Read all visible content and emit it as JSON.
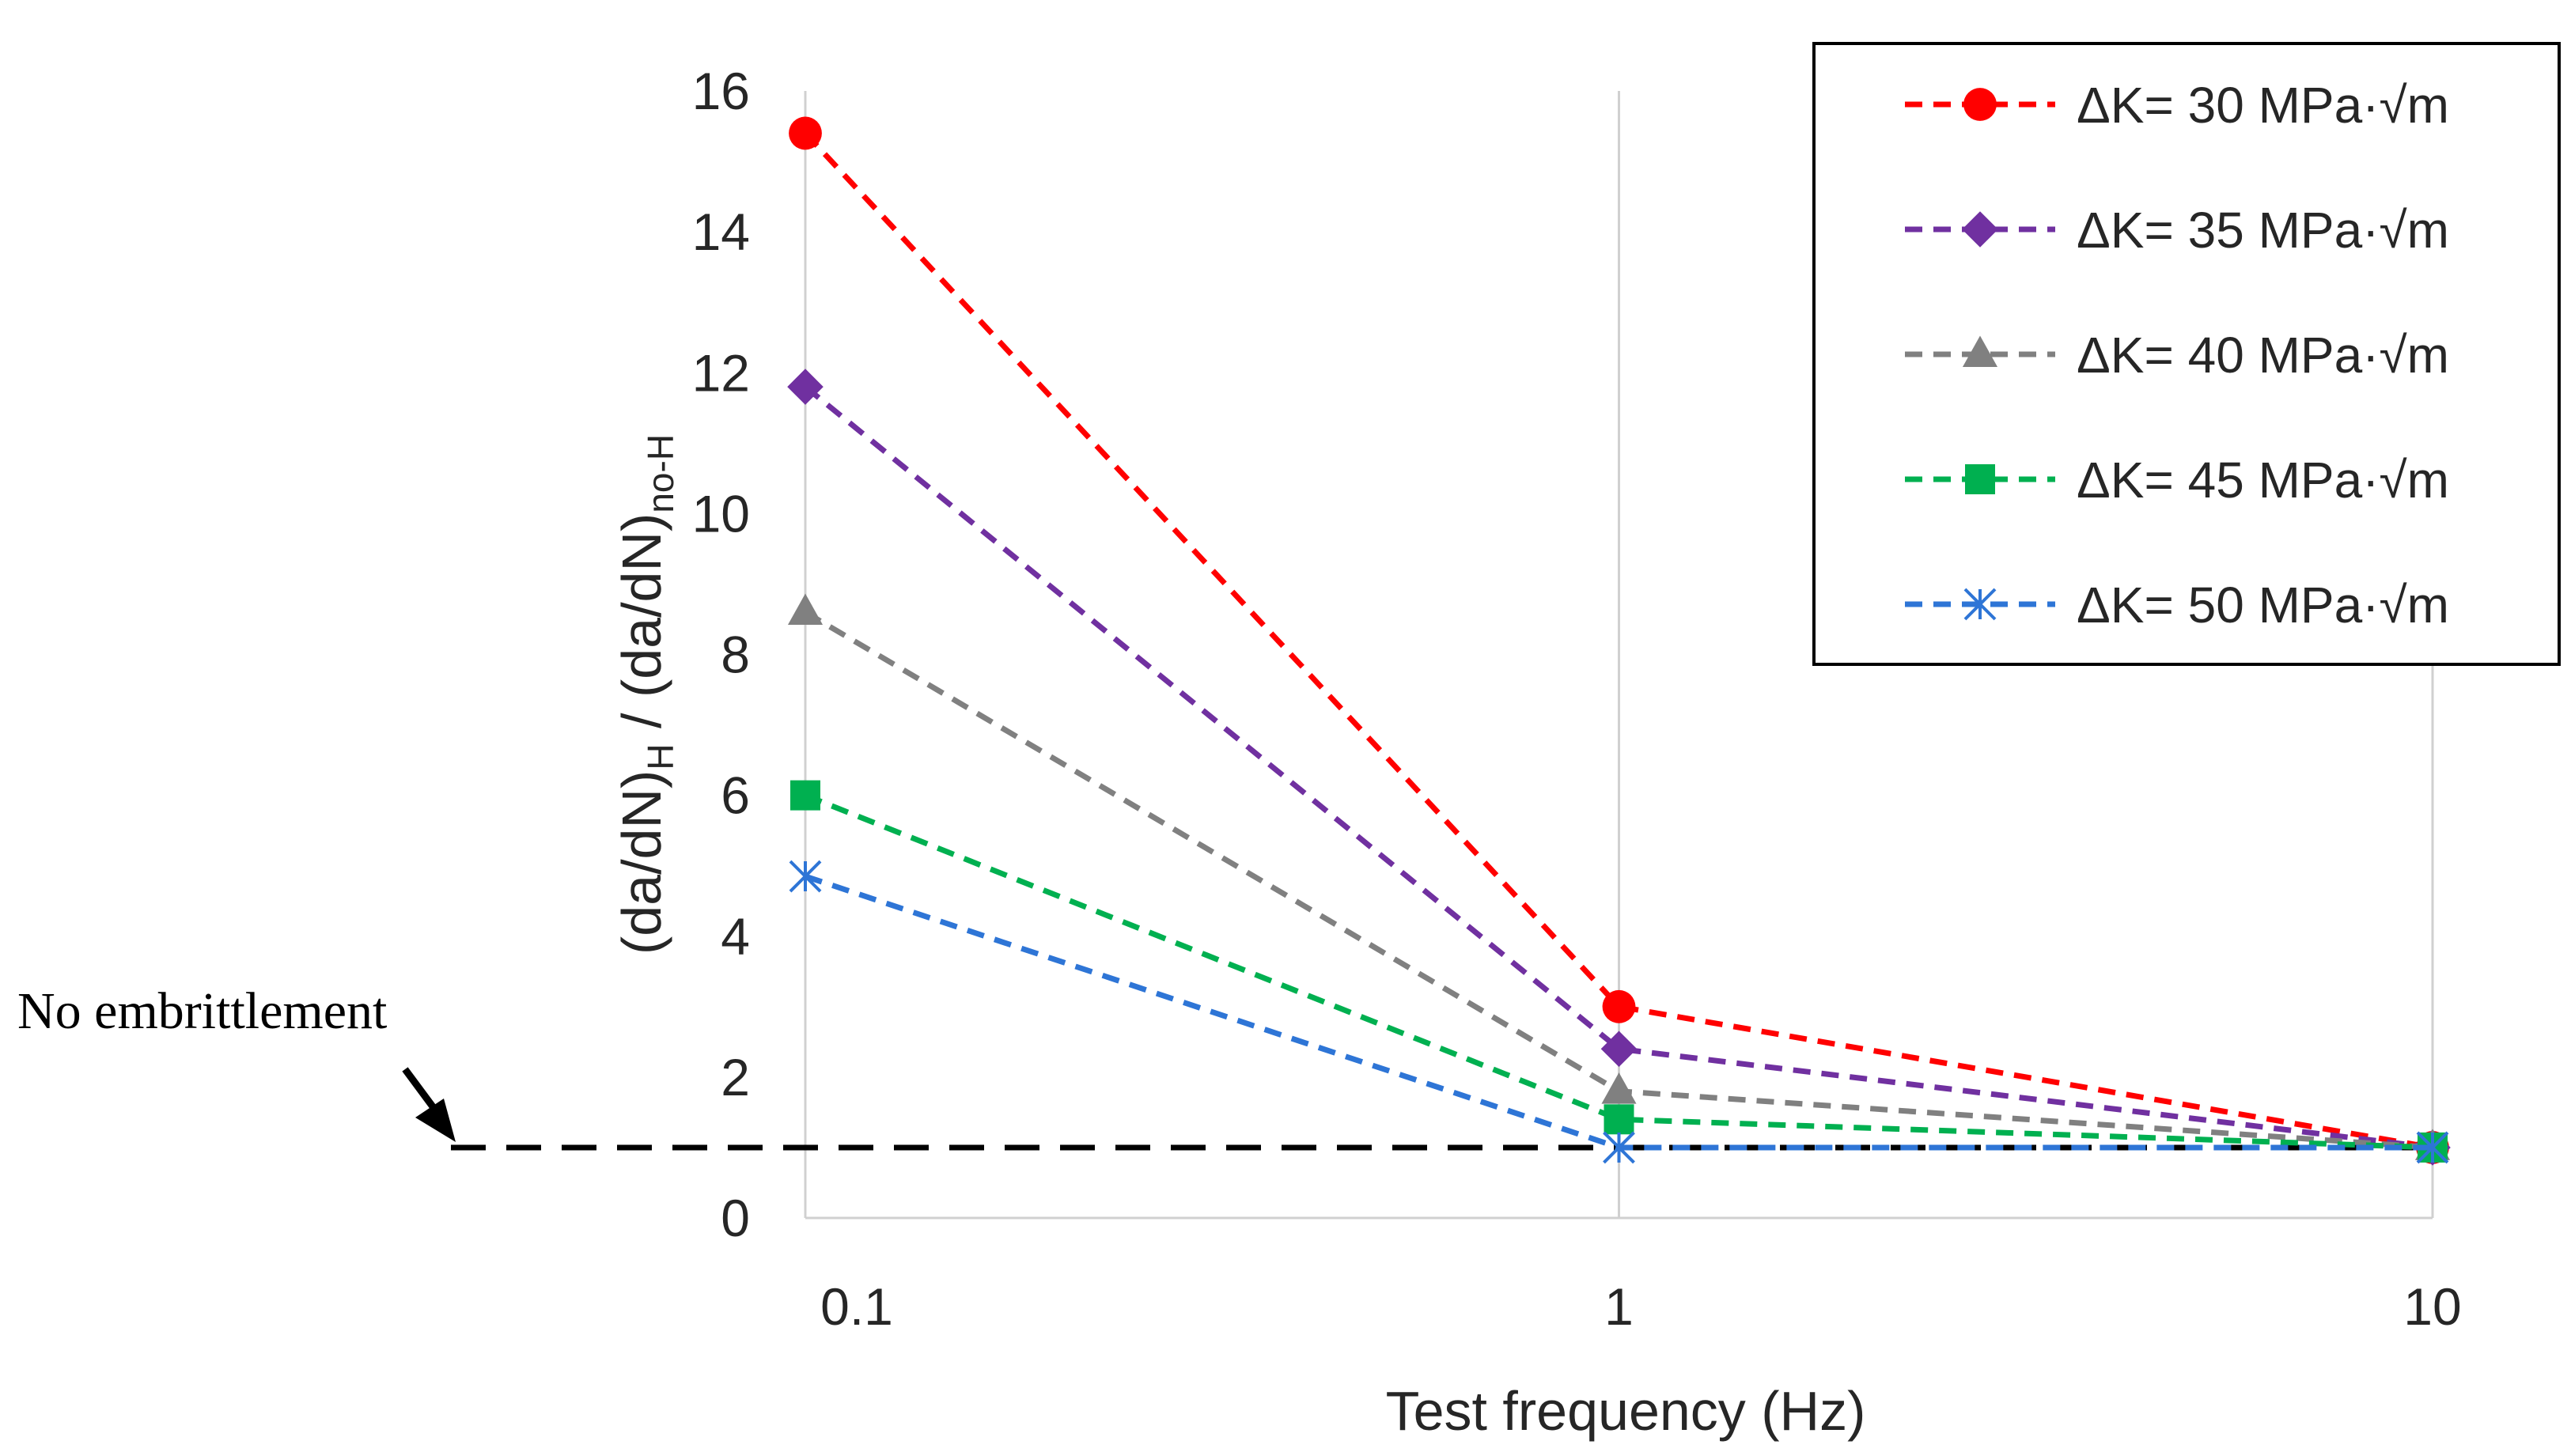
{
  "chart_data": {
    "type": "line",
    "xscale": "log",
    "x": [
      0.1,
      1,
      10
    ],
    "xlim": [
      0.1,
      10
    ],
    "ylim": [
      0,
      16
    ],
    "yticks": [
      0,
      2,
      4,
      6,
      8,
      10,
      12,
      14,
      16
    ],
    "xtick_labels": [
      "0.1",
      "1",
      "10"
    ],
    "ytick_labels": [
      "0",
      "2",
      "4",
      "6",
      "8",
      "10",
      "12",
      "14",
      "16"
    ],
    "xlabel": "Test frequency (Hz)",
    "ylabel": {
      "prefix": "(da/dN)",
      "sub1": "H",
      "middle": " / (da/dN)",
      "sub2": "no-H"
    },
    "grid": "vertical",
    "legend_position": "top-right",
    "series": [
      {
        "name": "ΔK= 30 MPa·√m",
        "values": [
          15.4,
          3.0,
          1.0
        ],
        "color": "#ff0000",
        "marker": "circle"
      },
      {
        "name": "ΔK= 35 MPa·√m",
        "values": [
          11.8,
          2.4,
          1.0
        ],
        "color": "#7030a0",
        "marker": "diamond"
      },
      {
        "name": "ΔK= 40 MPa·√m",
        "values": [
          8.6,
          1.8,
          1.0
        ],
        "color": "#808080",
        "marker": "triangle"
      },
      {
        "name": "ΔK= 45 MPa·√m",
        "values": [
          6.0,
          1.4,
          1.0
        ],
        "color": "#00b050",
        "marker": "square"
      },
      {
        "name": "ΔK= 50 MPa·√m",
        "values": [
          4.85,
          1.0,
          1.0
        ],
        "color": "#2e75d6",
        "marker": "cross"
      }
    ],
    "reference_line": {
      "y": 1,
      "label": "No embrittlement",
      "color": "#000000"
    }
  }
}
